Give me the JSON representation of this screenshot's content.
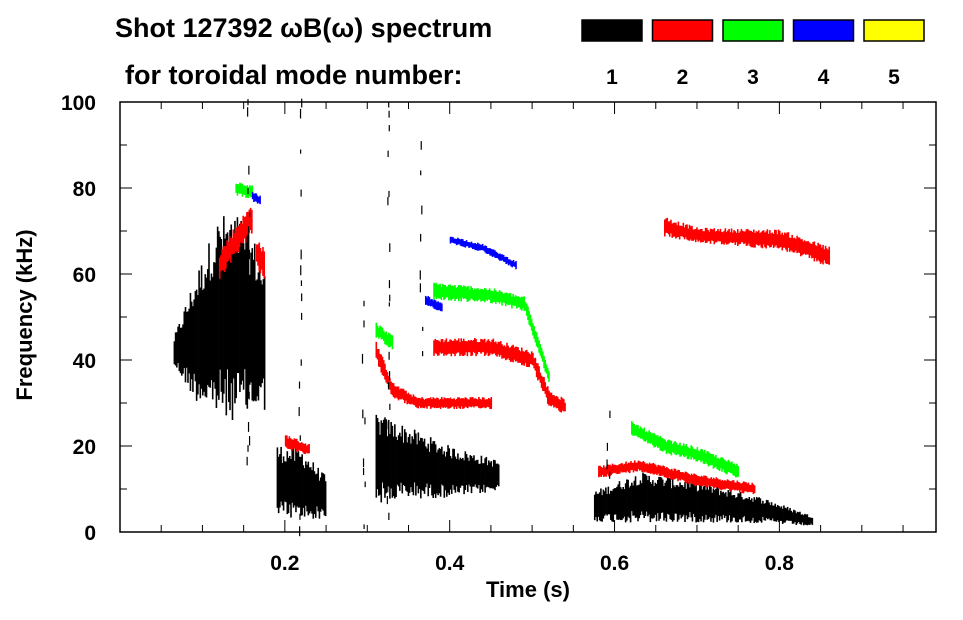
{
  "chart_data": {
    "type": "heatmap",
    "title": "Shot 127392 ωB(ω) spectrum",
    "subtitle": "for toroidal mode number:",
    "xlabel": "Time (s)",
    "ylabel": "Frequency (kHz)",
    "xlim": [
      0.0,
      0.99
    ],
    "ylim": [
      0,
      100
    ],
    "xticks": [
      0.2,
      0.4,
      0.6,
      0.8
    ],
    "xtick_labels": [
      "0.2",
      "0.4",
      "0.6",
      "0.8"
    ],
    "yticks": [
      0,
      20,
      40,
      60,
      80,
      100
    ],
    "ytick_labels": [
      "0",
      "20",
      "40",
      "60",
      "80",
      "100"
    ],
    "legend": [
      {
        "mode": "1",
        "color": "#000000"
      },
      {
        "mode": "2",
        "color": "#ff0000"
      },
      {
        "mode": "3",
        "color": "#00ff00"
      },
      {
        "mode": "4",
        "color": "#0000ff"
      },
      {
        "mode": "5",
        "color": "#ffff00"
      }
    ],
    "features": [
      {
        "mode": 1,
        "t": [
          0.065,
          0.09,
          0.12,
          0.15,
          0.175
        ],
        "f": [
          42,
          45,
          50,
          50,
          45
        ],
        "halfwidth": [
          3,
          12,
          20,
          20,
          14
        ]
      },
      {
        "mode": 1,
        "t": [
          0.19,
          0.22,
          0.25
        ],
        "f": [
          12,
          11,
          8
        ],
        "halfwidth": [
          7,
          7,
          4
        ]
      },
      {
        "mode": 1,
        "t": [
          0.31,
          0.35,
          0.4,
          0.46
        ],
        "f": [
          17,
          16,
          14,
          13
        ],
        "halfwidth": [
          9,
          7,
          5,
          3
        ]
      },
      {
        "mode": 1,
        "t": [
          0.575,
          0.63,
          0.7,
          0.78,
          0.84
        ],
        "f": [
          6,
          8,
          7,
          5,
          2.5
        ],
        "halfwidth": [
          3,
          5,
          4,
          2.5,
          1
        ]
      },
      {
        "mode": 2,
        "t": [
          0.12,
          0.14,
          0.16
        ],
        "f": [
          62,
          68,
          73
        ],
        "halfwidth": [
          3,
          3,
          3
        ]
      },
      {
        "mode": 2,
        "t": [
          0.165,
          0.175
        ],
        "f": [
          65,
          62
        ],
        "halfwidth": [
          3,
          3
        ]
      },
      {
        "mode": 2,
        "t": [
          0.2,
          0.23
        ],
        "f": [
          21,
          19
        ],
        "halfwidth": [
          1.5,
          1.2
        ]
      },
      {
        "mode": 2,
        "t": [
          0.31,
          0.33,
          0.36,
          0.45
        ],
        "f": [
          42,
          33,
          30,
          30
        ],
        "halfwidth": [
          2,
          1.5,
          1.2,
          1.2
        ]
      },
      {
        "mode": 2,
        "t": [
          0.38,
          0.45,
          0.5,
          0.52,
          0.54
        ],
        "f": [
          43,
          43,
          40,
          31,
          29
        ],
        "halfwidth": [
          1.8,
          1.8,
          1.8,
          1.8,
          1.5
        ]
      },
      {
        "mode": 2,
        "t": [
          0.58,
          0.63,
          0.7,
          0.77
        ],
        "f": [
          14,
          15.5,
          12,
          10
        ],
        "halfwidth": [
          1.2,
          1.2,
          1.2,
          1.2
        ]
      },
      {
        "mode": 2,
        "t": [
          0.66,
          0.7,
          0.8,
          0.86
        ],
        "f": [
          71,
          69,
          68,
          64
        ],
        "halfwidth": [
          2,
          1.5,
          2,
          2
        ]
      },
      {
        "mode": 3,
        "t": [
          0.38,
          0.45,
          0.49,
          0.52
        ],
        "f": [
          56,
          55,
          53,
          36
        ],
        "halfwidth": [
          1.8,
          1.5,
          1.5,
          1.5
        ]
      },
      {
        "mode": 3,
        "t": [
          0.14,
          0.16
        ],
        "f": [
          80,
          79
        ],
        "halfwidth": [
          1.5,
          1.5
        ]
      },
      {
        "mode": 3,
        "t": [
          0.31,
          0.33
        ],
        "f": [
          47,
          44
        ],
        "halfwidth": [
          1.5,
          1.5
        ]
      },
      {
        "mode": 3,
        "t": [
          0.62,
          0.66,
          0.7,
          0.75
        ],
        "f": [
          24,
          20,
          18,
          14
        ],
        "halfwidth": [
          1.5,
          1.5,
          1.5,
          1.5
        ]
      },
      {
        "mode": 4,
        "t": [
          0.4,
          0.44,
          0.48
        ],
        "f": [
          68,
          66,
          62
        ],
        "halfwidth": [
          0.8,
          0.8,
          0.8
        ]
      },
      {
        "mode": 4,
        "t": [
          0.16,
          0.17
        ],
        "f": [
          78,
          77
        ],
        "halfwidth": [
          1,
          1
        ]
      },
      {
        "mode": 4,
        "t": [
          0.37,
          0.39
        ],
        "f": [
          54,
          52
        ],
        "halfwidth": [
          1,
          1
        ]
      }
    ],
    "streaks": [
      {
        "mode": 1,
        "t": 0.218,
        "f": [
          0,
          100
        ]
      },
      {
        "mode": 1,
        "t": 0.155,
        "f": [
          15,
          100
        ]
      },
      {
        "mode": 1,
        "t": 0.295,
        "f": [
          0,
          60
        ]
      },
      {
        "mode": 1,
        "t": 0.325,
        "f": [
          0,
          100
        ]
      },
      {
        "mode": 1,
        "t": 0.365,
        "f": [
          40,
          90
        ]
      },
      {
        "mode": 1,
        "t": 0.592,
        "f": [
          0,
          30
        ]
      }
    ]
  }
}
